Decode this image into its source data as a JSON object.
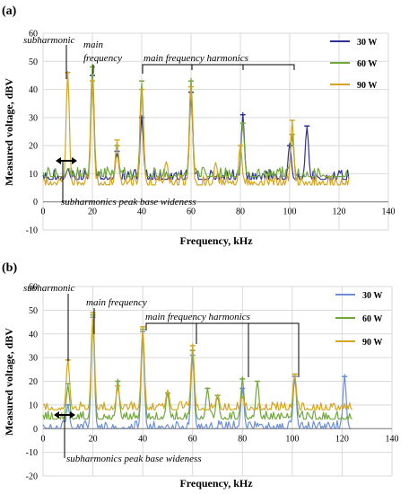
{
  "chart_data": [
    {
      "panel_label": "(a)",
      "type": "line",
      "xlabel": "Frequency, kHz",
      "ylabel": "Measured voltage, dBV",
      "xlim": [
        0,
        140
      ],
      "ylim": [
        -10,
        60
      ],
      "xticks": [
        0,
        20,
        40,
        60,
        80,
        100,
        120,
        140
      ],
      "yticks": [
        -10,
        0,
        10,
        20,
        30,
        40,
        50,
        60
      ],
      "grid": true,
      "legend_position": "top-right",
      "series": [
        {
          "name": "30 W",
          "color": "#2e3192",
          "base": 8,
          "peaks": [
            [
              10,
              12
            ],
            [
              20,
              45
            ],
            [
              30,
              18
            ],
            [
              40,
              30
            ],
            [
              60,
              39
            ],
            [
              81,
              31
            ],
            [
              100,
              20
            ],
            [
              107,
              27
            ]
          ]
        },
        {
          "name": "60 W",
          "color": "#70a83a",
          "base": 9,
          "peaks": [
            [
              10,
              12
            ],
            [
              20,
              48
            ],
            [
              30,
              20
            ],
            [
              40,
              43
            ],
            [
              60,
              43
            ],
            [
              81,
              28
            ],
            [
              101,
              24
            ]
          ]
        },
        {
          "name": "90 W",
          "color": "#d4a520",
          "base": 6,
          "peaks": [
            [
              10,
              46
            ],
            [
              20,
              43
            ],
            [
              30,
              22
            ],
            [
              40,
              40
            ],
            [
              50,
              15
            ],
            [
              60,
              41
            ],
            [
              70,
              14
            ],
            [
              80,
              20
            ],
            [
              101,
              29
            ]
          ]
        }
      ],
      "x_end": 124,
      "annotations": [
        "subharmonic",
        "main frequency",
        "main frequency harmonics",
        "subharmonics peak base wideness"
      ]
    },
    {
      "panel_label": "(b)",
      "type": "line",
      "xlabel": "Frequency, kHz",
      "ylabel": "Measured voltage, dBV",
      "xlim": [
        0,
        140
      ],
      "ylim": [
        -20,
        60
      ],
      "xticks": [
        0,
        20,
        40,
        60,
        80,
        100,
        120,
        140
      ],
      "yticks": [
        -20,
        -10,
        0,
        10,
        20,
        30,
        40,
        50,
        60
      ],
      "grid": true,
      "legend_position": "top-right",
      "series": [
        {
          "name": "30 W",
          "color": "#6d8fd8",
          "base": 0,
          "peaks": [
            [
              10,
              10
            ],
            [
              20,
              47
            ],
            [
              40,
              41
            ],
            [
              60,
              31
            ],
            [
              80,
              17
            ],
            [
              101,
              22
            ],
            [
              121,
              22
            ]
          ]
        },
        {
          "name": "60 W",
          "color": "#70a83a",
          "base": 4,
          "peaks": [
            [
              10,
              19
            ],
            [
              20,
              48
            ],
            [
              30,
              20
            ],
            [
              40,
              42
            ],
            [
              50,
              15
            ],
            [
              60,
              33
            ],
            [
              66,
              17
            ],
            [
              70,
              14
            ],
            [
              80,
              21
            ],
            [
              86,
              20
            ],
            [
              101,
              23
            ]
          ]
        },
        {
          "name": "90 W",
          "color": "#d4a520",
          "base": 8,
          "peaks": [
            [
              10,
              29
            ],
            [
              20,
              49
            ],
            [
              30,
              18
            ],
            [
              40,
              43
            ],
            [
              50,
              17
            ],
            [
              60,
              35
            ],
            [
              70,
              14
            ],
            [
              80,
              14
            ],
            [
              101,
              23
            ]
          ]
        }
      ],
      "x_end": 124,
      "annotations": [
        "subharmonic",
        "main frequency",
        "main frequency harmonics",
        "subharmonics peak base wideness"
      ]
    }
  ]
}
